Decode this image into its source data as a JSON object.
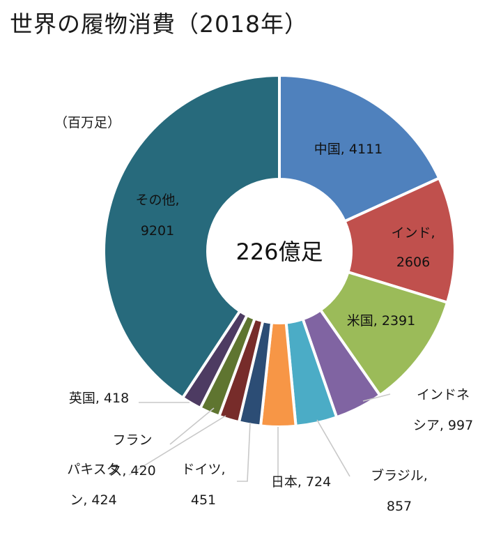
{
  "chart_data": {
    "type": "donut",
    "title": "世界の履物消費（2018年）",
    "unit_label": "（百万足）",
    "center_label": "226億足",
    "segments": [
      {
        "name": "中国",
        "value": 4111,
        "color": "#4f81bd",
        "label_lines": [
          "中国, 4111"
        ]
      },
      {
        "name": "インド",
        "value": 2606,
        "color": "#c0504d",
        "label_lines": [
          "インド,",
          "2606"
        ]
      },
      {
        "name": "米国",
        "value": 2391,
        "color": "#9bbb59",
        "label_lines": [
          "米国, 2391"
        ]
      },
      {
        "name": "インドネシア",
        "value": 997,
        "color": "#8064a2",
        "label_lines": [
          "インドネ",
          "シア, 997"
        ]
      },
      {
        "name": "ブラジル",
        "value": 857,
        "color": "#4bacc6",
        "label_lines": [
          "ブラジル,",
          "857"
        ]
      },
      {
        "name": "日本",
        "value": 724,
        "color": "#f79646",
        "label_lines": [
          "日本, 724"
        ]
      },
      {
        "name": "ドイツ",
        "value": 451,
        "color": "#2c4d75",
        "label_lines": [
          "ドイツ,",
          "451"
        ]
      },
      {
        "name": "パキスタン",
        "value": 424,
        "color": "#772c2a",
        "label_lines": [
          "パキスタ",
          "ン, 424"
        ]
      },
      {
        "name": "フランス",
        "value": 420,
        "color": "#5f7530",
        "label_lines": [
          "フラン",
          "ス, 420"
        ]
      },
      {
        "name": "英国",
        "value": 418,
        "color": "#4d3b62",
        "label_lines": [
          "英国, 418"
        ]
      },
      {
        "name": "その他",
        "value": 9201,
        "color": "#276a7c",
        "label_lines": [
          "その他,",
          "9201"
        ]
      }
    ]
  }
}
